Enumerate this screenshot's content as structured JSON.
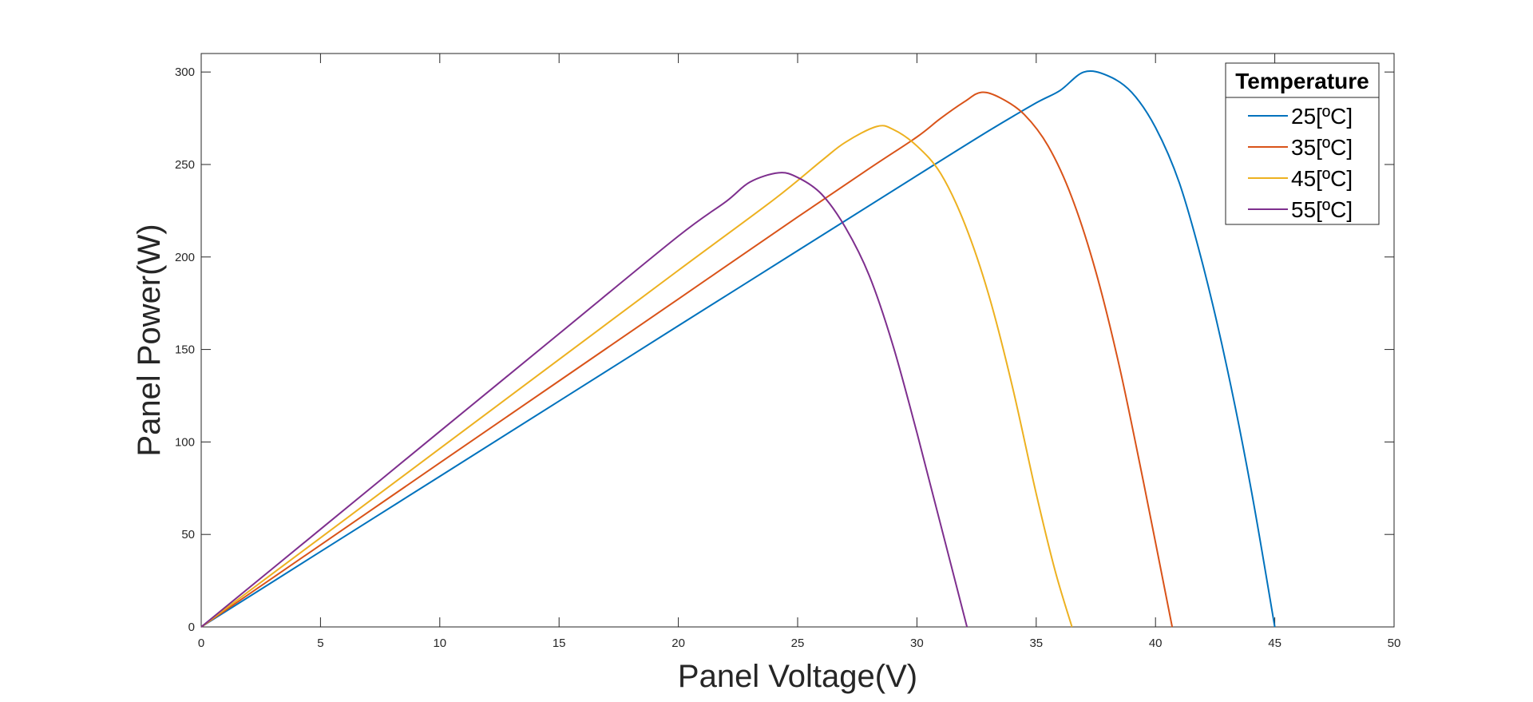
{
  "chart_data": {
    "type": "line",
    "title": "",
    "xlabel": "Panel Voltage(V)",
    "ylabel": "Panel Power(W)",
    "xlim": [
      0,
      50
    ],
    "ylim": [
      0,
      310
    ],
    "xticks": [
      0,
      5,
      10,
      15,
      20,
      25,
      30,
      35,
      40,
      45,
      50
    ],
    "yticks": [
      0,
      50,
      100,
      150,
      200,
      250,
      300
    ],
    "grid": false,
    "legend": {
      "title": "Temperature",
      "position": "top-right"
    },
    "series": [
      {
        "name": "25[ºC]",
        "color": "#0072BD",
        "x": [
          0,
          5,
          10,
          15,
          20,
          25,
          30,
          33,
          35,
          36,
          37,
          38,
          39,
          40,
          41,
          42,
          43,
          44,
          45
        ],
        "y": [
          0,
          40.7,
          81.4,
          122.1,
          162.8,
          203.4,
          244,
          268.1,
          283.3,
          290,
          300,
          298,
          289,
          270,
          240,
          195,
          140,
          75,
          0
        ]
      },
      {
        "name": "35[ºC]",
        "color": "#D95319",
        "x": [
          0,
          5,
          10,
          15,
          20,
          25,
          28,
          30,
          31,
          32,
          32.7,
          33.5,
          34.5,
          35.5,
          36.5,
          37.5,
          38.5,
          39.5,
          40.7
        ],
        "y": [
          0,
          44.3,
          88.7,
          133,
          177.3,
          221.6,
          247.8,
          264.9,
          275,
          284,
          289,
          286,
          277,
          260,
          232,
          192,
          140,
          78,
          0
        ]
      },
      {
        "name": "45[ºC]",
        "color": "#EDB120",
        "x": [
          0,
          5,
          10,
          15,
          20,
          24,
          26,
          27,
          28.3,
          29,
          30,
          31,
          32,
          33,
          34,
          35,
          35.8,
          36.5
        ],
        "y": [
          0,
          48.2,
          96.4,
          144.6,
          192.8,
          231,
          252,
          262,
          270.5,
          269,
          260,
          245,
          218,
          180,
          130,
          72,
          30,
          0
        ]
      },
      {
        "name": "55[ºC]",
        "color": "#7E2F8E",
        "x": [
          0,
          5,
          10,
          15,
          20,
          22,
          23,
          24.2,
          25,
          26,
          27,
          28,
          29,
          30,
          31,
          32.1
        ],
        "y": [
          0,
          52.8,
          105.7,
          158.5,
          211.3,
          230,
          240.5,
          245.5,
          243,
          234,
          216,
          190,
          152,
          105,
          55,
          0
        ]
      }
    ]
  }
}
